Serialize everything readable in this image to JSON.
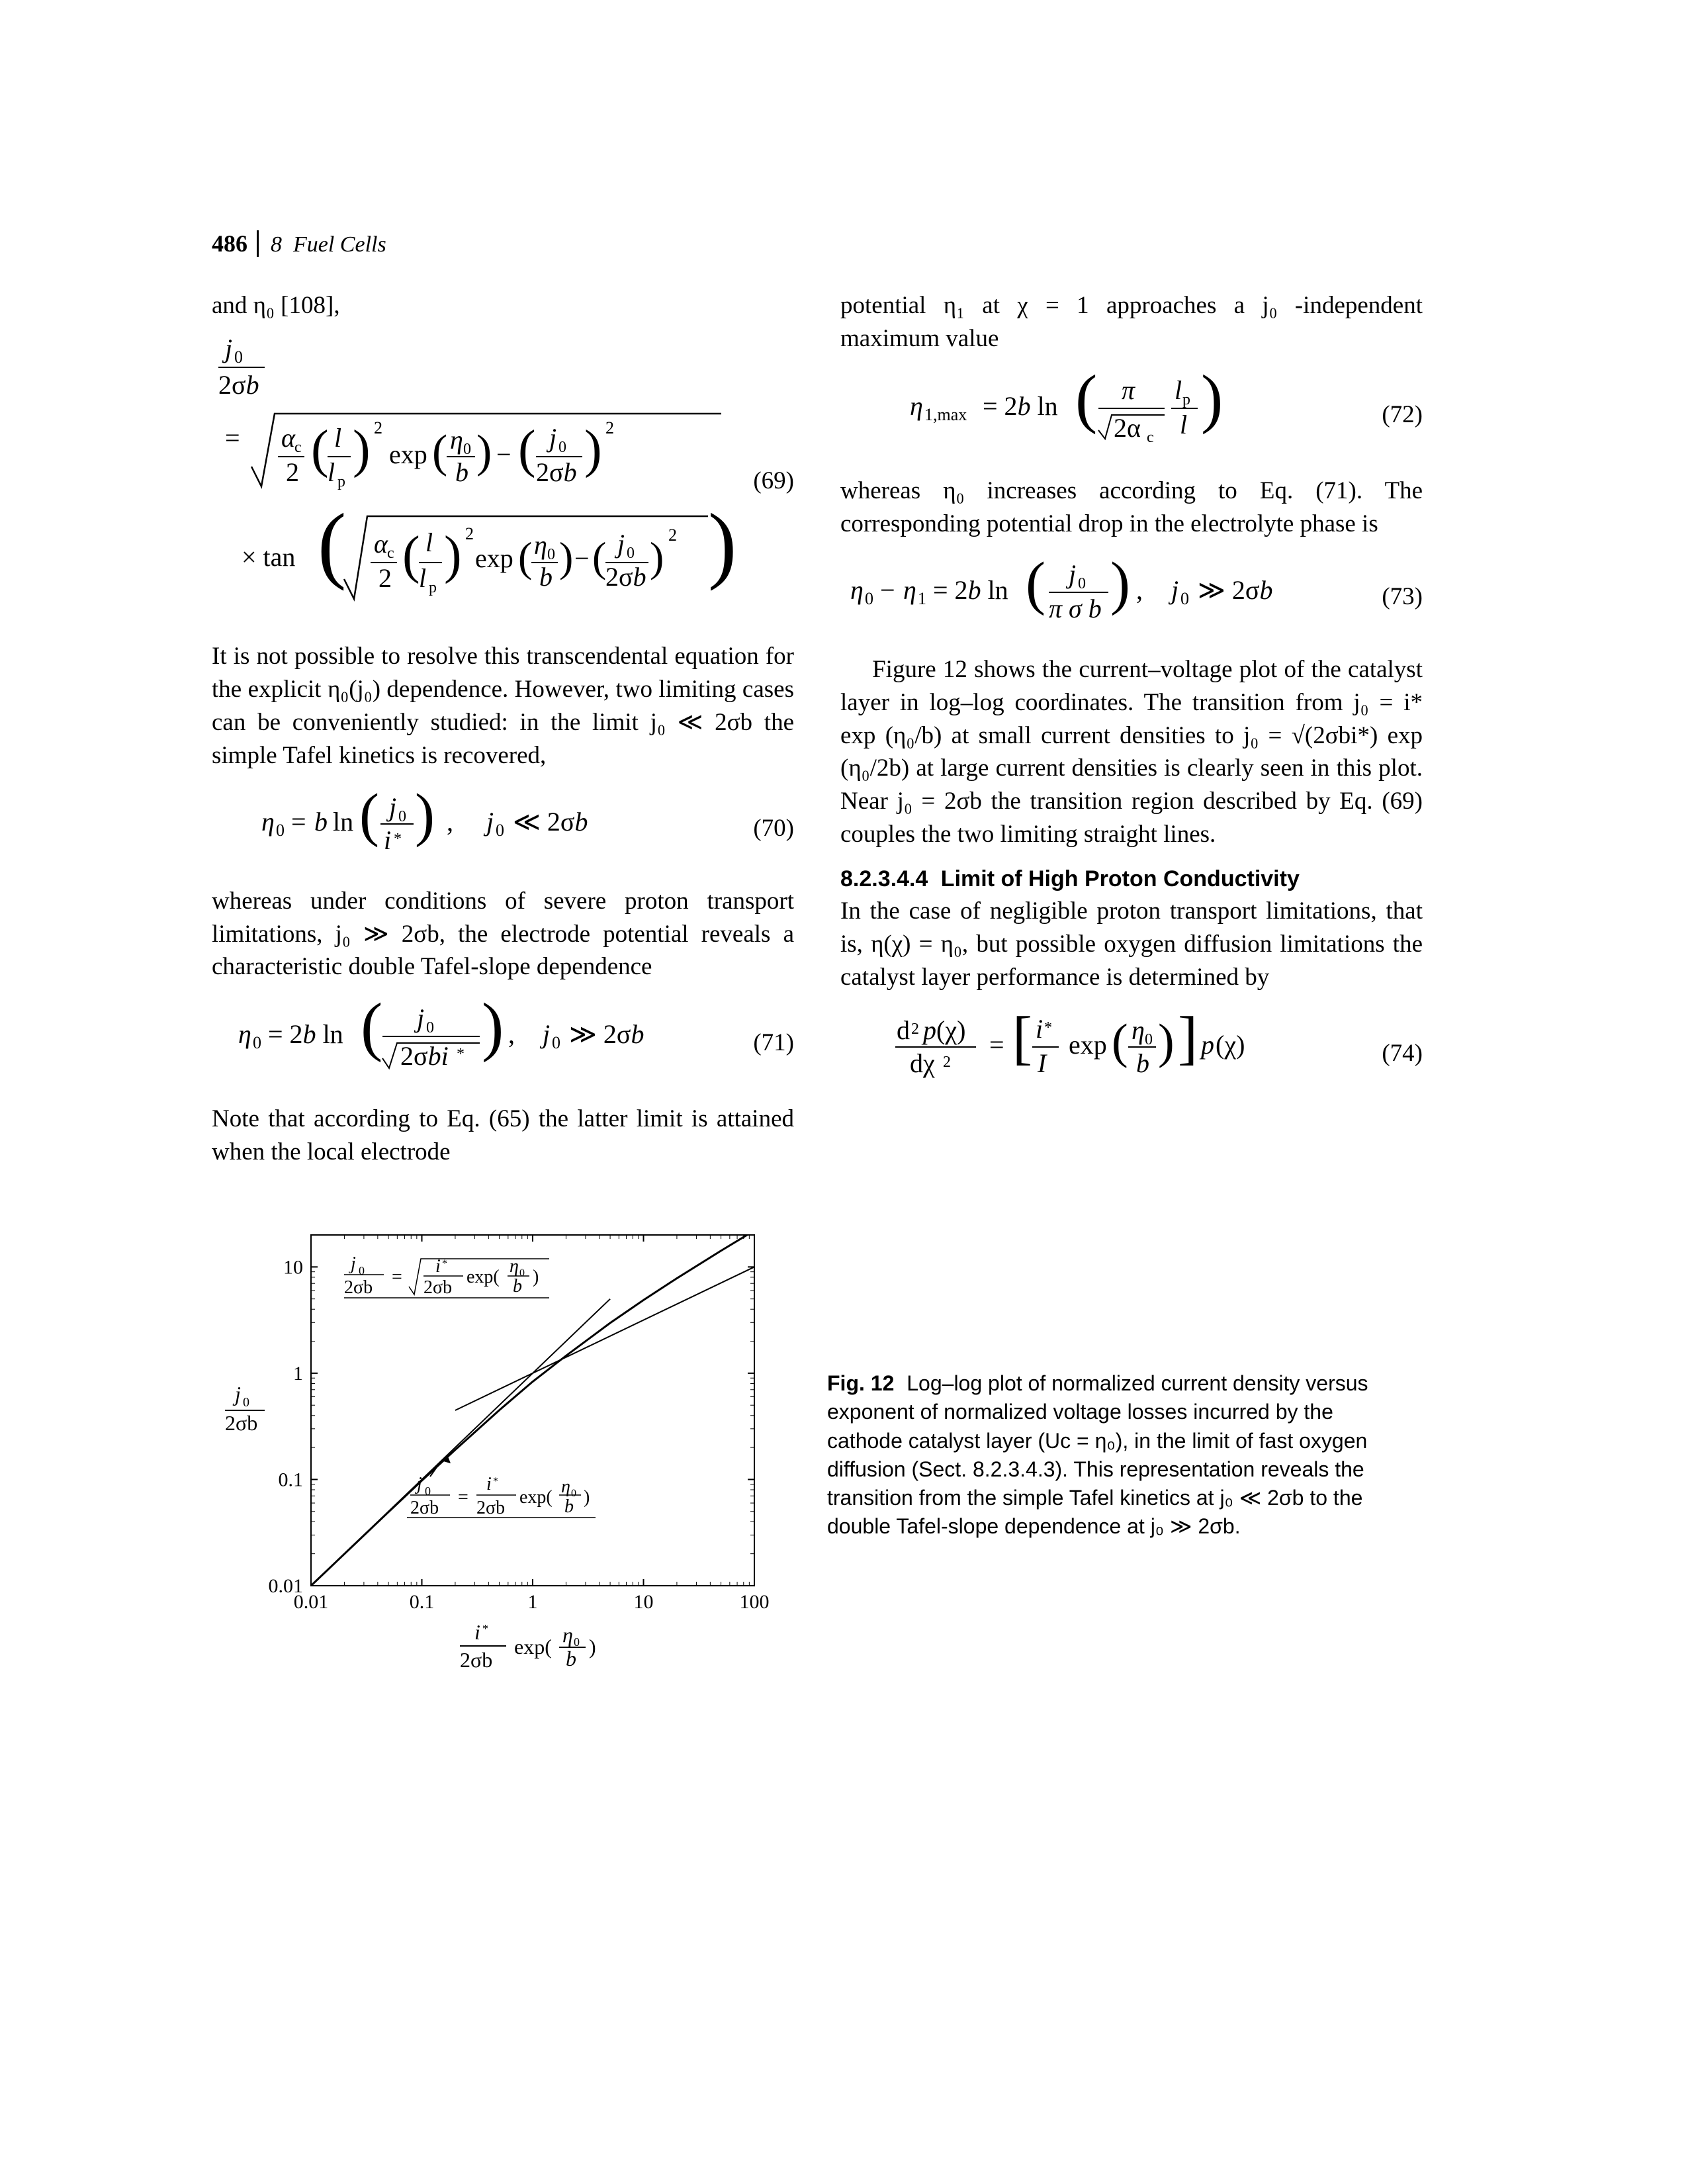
{
  "page_number": "486",
  "chapter_ref": "8",
  "chapter_title": "Fuel Cells",
  "p_intro": "and η₀ [108],",
  "eq69_num": "(69)",
  "p_after69": "It is not possible to resolve this transcendental equation for the explicit η₀(j₀) dependence. However, two limiting cases can be conveniently studied: in the limit j₀ ≪ 2σb the simple Tafel kinetics is recovered,",
  "eq70_num": "(70)",
  "p_after70": "whereas under conditions of severe proton transport limitations, j₀ ≫ 2σb, the electrode potential reveals a characteristic double Tafel-slope dependence",
  "eq71_num": "(71)",
  "p_after71": "Note that according to Eq. (65) the latter limit is attained when the local electrode",
  "p_col2_top": "potential η₁ at χ = 1 approaches a j₀ -independent maximum value",
  "eq72_num": "(72)",
  "p_after72": "whereas η₀ increases according to Eq. (71). The corresponding potential drop in the electrolyte phase is",
  "eq73_num": "(73)",
  "p_after73": "Figure 12 shows the current–voltage plot of the catalyst layer in log–log coordinates. The transition from j₀ = i* exp (η₀/b) at small current densities to j₀ = √(2σbi*) exp (η₀/2b) at large current densities is clearly seen in this plot. Near j₀ = 2σb the transition region described by Eq. (69) couples the two limiting straight lines.",
  "sec_num": "8.2.3.4.4",
  "sec_title": "Limit of High Proton Conductivity",
  "p_sec": "In the case of negligible proton transport limitations, that is, η(χ) = η₀, but possible oxygen diffusion limitations the catalyst layer performance is determined by",
  "eq74_num": "(74)",
  "fig": {
    "label": "Fig. 12",
    "caption": "Log–log plot of normalized current density versus exponent of normalized voltage losses incurred by the cathode catalyst layer (Uc = η₀), in the limit of fast oxygen diffusion (Sect. 8.2.3.4.3). This representation reveals the transition from the simple Tafel kinetics at j₀ ≪ 2σb to the double Tafel-slope dependence at j₀ ≫ 2σb.",
    "type": "loglog-line",
    "xlim": [
      0.01,
      100
    ],
    "ylim": [
      0.01,
      20
    ],
    "xticks": [
      0.01,
      0.1,
      1,
      10,
      100
    ],
    "yticks": [
      0.01,
      0.1,
      1,
      10
    ],
    "axis_color": "#000000",
    "tick_fontsize": 30,
    "line_color": "#000000",
    "line_width": 3,
    "asymptote_color": "#000000",
    "asymptote_width": 2,
    "y_axis_label_svg": "j0_over_2sigmab",
    "x_axis_label_svg": "istar_over_2sigmab_exp",
    "curve_pts": [
      [
        0.01,
        0.01
      ],
      [
        0.02,
        0.0199
      ],
      [
        0.05,
        0.0494
      ],
      [
        0.1,
        0.0976
      ],
      [
        0.2,
        0.19
      ],
      [
        0.5,
        0.449
      ],
      [
        1,
        0.833
      ],
      [
        2,
        1.46
      ],
      [
        5,
        2.97
      ],
      [
        10,
        4.88
      ],
      [
        20,
        7.82
      ],
      [
        50,
        14.2
      ],
      [
        100,
        22.0
      ]
    ],
    "linear_asym": [
      [
        0.01,
        0.01
      ],
      [
        5,
        5
      ]
    ],
    "sqrt_asym": [
      [
        0.2,
        0.447
      ],
      [
        100,
        10
      ]
    ]
  }
}
